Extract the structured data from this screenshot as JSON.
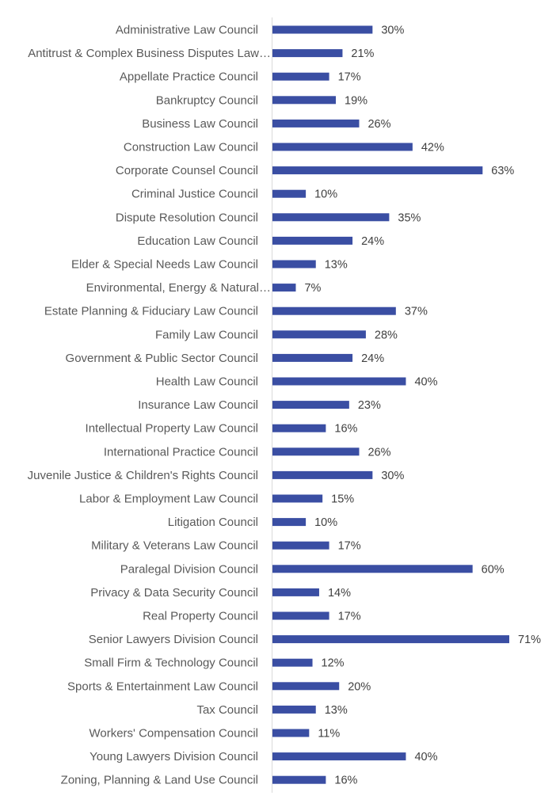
{
  "chart_data": {
    "type": "bar",
    "orientation": "horizontal",
    "title": "",
    "xlabel": "",
    "ylabel": "",
    "xlim": [
      0,
      75
    ],
    "grid": false,
    "legend": "none",
    "value_format": "percent",
    "bar_color": "#3A4EA3",
    "axis_color": "#D9D9D9",
    "categories": [
      "Administrative Law Council",
      "Antitrust & Complex Business Disputes Law…",
      "Appellate Practice Council",
      "Bankruptcy Council",
      "Business Law Council",
      "Construction Law Council",
      "Corporate Counsel Council",
      "Criminal Justice Council",
      "Dispute Resolution Council",
      "Education Law Council",
      "Elder & Special Needs Law Council",
      "Environmental, Energy & Natural…",
      "Estate Planning & Fiduciary Law Council",
      "Family Law Council",
      "Government & Public Sector Council",
      "Health Law Council",
      "Insurance Law Council",
      "Intellectual Property Law Council",
      "International Practice Council",
      "Juvenile Justice & Children's Rights Council",
      "Labor & Employment Law Council",
      "Litigation Council",
      "Military & Veterans Law Council",
      "Paralegal Division Council",
      "Privacy & Data Security Council",
      "Real Property Council",
      "Senior Lawyers Division Council",
      "Small Firm & Technology Council",
      "Sports & Entertainment Law Council",
      "Tax Council",
      "Workers' Compensation Council",
      "Young Lawyers Division Council",
      "Zoning, Planning & Land Use Council"
    ],
    "values": [
      30,
      21,
      17,
      19,
      26,
      42,
      63,
      10,
      35,
      24,
      13,
      7,
      37,
      28,
      24,
      40,
      23,
      16,
      26,
      30,
      15,
      10,
      17,
      60,
      14,
      17,
      71,
      12,
      20,
      13,
      11,
      40,
      16
    ],
    "data_labels": [
      "30%",
      "21%",
      "17%",
      "19%",
      "26%",
      "42%",
      "63%",
      "10%",
      "35%",
      "24%",
      "13%",
      "7%",
      "37%",
      "28%",
      "24%",
      "40%",
      "23%",
      "16%",
      "26%",
      "30%",
      "15%",
      "10%",
      "17%",
      "60%",
      "14%",
      "17%",
      "71%",
      "12%",
      "20%",
      "13%",
      "11%",
      "40%",
      "16%"
    ]
  }
}
